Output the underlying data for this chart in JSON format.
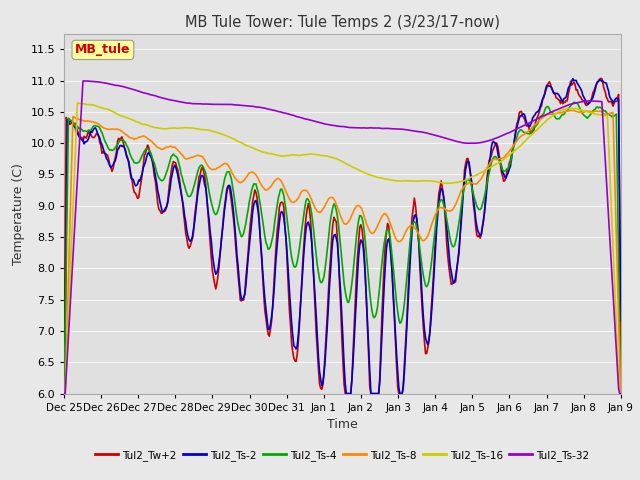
{
  "title": "MB Tule Tower: Tule Temps 2 (3/23/17-now)",
  "xlabel": "Time",
  "ylabel": "Temperature (C)",
  "ylim": [
    6.0,
    11.75
  ],
  "yticks": [
    6.0,
    6.5,
    7.0,
    7.5,
    8.0,
    8.5,
    9.0,
    9.5,
    10.0,
    10.5,
    11.0,
    11.5
  ],
  "background_color": "#e8e8e8",
  "plot_background": "#e0e0e0",
  "grid_color": "#f5f5f5",
  "series_colors": [
    "#cc0000",
    "#0000cc",
    "#00aa00",
    "#ff8800",
    "#cccc00",
    "#9900cc"
  ],
  "series_labels": [
    "Tul2_Tw+2",
    "Tul2_Ts-2",
    "Tul2_Ts-4",
    "Tul2_Ts-8",
    "Tul2_Ts-16",
    "Tul2_Ts-32"
  ],
  "legend_label": "MB_tule",
  "legend_box_color": "#ffff99",
  "legend_text_color": "#cc0000",
  "xtick_labels": [
    "Dec 25",
    "Dec 26",
    "Dec 27",
    "Dec 28",
    "Dec 29",
    "Dec 30",
    "Dec 31",
    "Jan 1",
    "Jan 2",
    "Jan 3",
    "Jan 4",
    "Jan 5",
    "Jan 6",
    "Jan 7",
    "Jan 8",
    "Jan 9"
  ]
}
